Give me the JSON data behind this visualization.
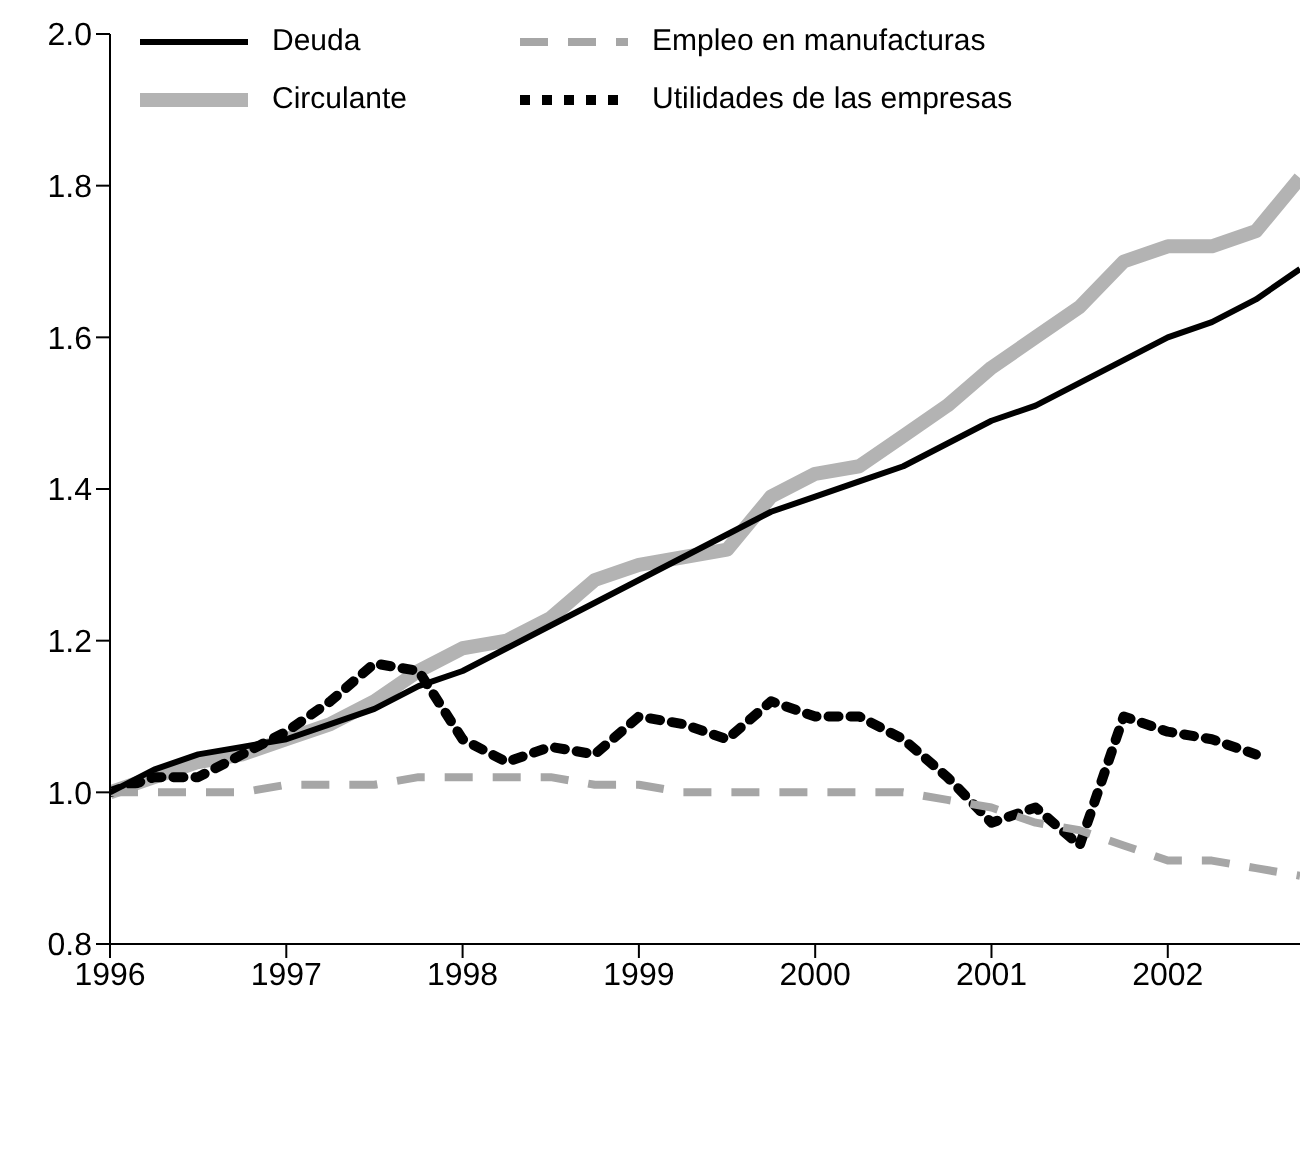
{
  "chart_data": {
    "type": "line",
    "x": [
      1996,
      1996.25,
      1996.5,
      1996.75,
      1997,
      1997.25,
      1997.5,
      1997.75,
      1998,
      1998.25,
      1998.5,
      1998.75,
      1999,
      1999.25,
      1999.5,
      1999.75,
      2000,
      2000.25,
      2000.5,
      2000.75,
      2001,
      2001.25,
      2001.5,
      2001.75,
      2002,
      2002.25,
      2002.5,
      2002.75
    ],
    "series": [
      {
        "name": "Deuda",
        "color": "#000000",
        "line_style": "solid",
        "values": [
          1.0,
          1.03,
          1.05,
          1.06,
          1.07,
          1.09,
          1.11,
          1.14,
          1.16,
          1.19,
          1.22,
          1.25,
          1.28,
          1.31,
          1.34,
          1.37,
          1.39,
          1.41,
          1.43,
          1.46,
          1.49,
          1.51,
          1.54,
          1.57,
          1.6,
          1.62,
          1.65,
          1.69
        ]
      },
      {
        "name": "Empleo en manufacturas",
        "color": "#a6a6a6",
        "line_style": "dashed",
        "values": [
          1.0,
          1.0,
          1.0,
          1.0,
          1.01,
          1.01,
          1.01,
          1.02,
          1.02,
          1.02,
          1.02,
          1.01,
          1.01,
          1.0,
          1.0,
          1.0,
          1.0,
          1.0,
          1.0,
          0.99,
          0.98,
          0.96,
          0.95,
          0.93,
          0.91,
          0.91,
          0.9,
          0.89
        ]
      },
      {
        "name": "Circulante",
        "color": "#b3b3b3",
        "line_style": "solid",
        "values": [
          1.0,
          1.02,
          1.04,
          1.05,
          1.07,
          1.09,
          1.12,
          1.16,
          1.19,
          1.2,
          1.23,
          1.28,
          1.3,
          1.31,
          1.32,
          1.39,
          1.42,
          1.43,
          1.47,
          1.51,
          1.56,
          1.6,
          1.64,
          1.7,
          1.72,
          1.72,
          1.74,
          1.81
        ]
      },
      {
        "name": "Utilidades de las empresas",
        "color": "#000000",
        "line_style": "dotted",
        "values": [
          1.0,
          1.02,
          1.02,
          1.05,
          1.08,
          1.12,
          1.17,
          1.16,
          1.07,
          1.04,
          1.06,
          1.05,
          1.1,
          1.09,
          1.07,
          1.12,
          1.1,
          1.1,
          1.07,
          1.02,
          0.96,
          0.98,
          0.93,
          1.1,
          1.08,
          1.07,
          1.05,
          null
        ]
      }
    ],
    "xlim": [
      1996,
      2002.75
    ],
    "xticks": [
      1996,
      1997,
      1998,
      1999,
      2000,
      2001,
      2002
    ],
    "ylim": [
      0.8,
      2.0
    ],
    "yticks": [
      {
        "value": 0.8,
        "label": "0.8"
      },
      {
        "value": 1.0,
        "label": "1.0"
      },
      {
        "value": 1.2,
        "label": "1.2"
      },
      {
        "value": 1.4,
        "label": "1.4"
      },
      {
        "value": 1.6,
        "label": "1.6"
      },
      {
        "value": 1.8,
        "label": "1.8"
      },
      {
        "value": 2.0,
        "label": "2.0"
      }
    ],
    "grid": false,
    "legend": "top left",
    "marker": "none"
  }
}
